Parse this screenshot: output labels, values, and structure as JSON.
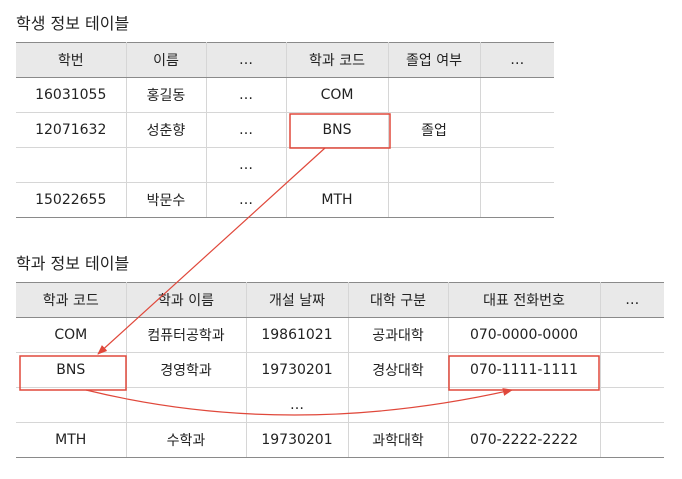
{
  "student_table": {
    "title": "학생 정보 테이블",
    "headers": [
      "학번",
      "이름",
      "…",
      "학과 코드",
      "졸업 여부",
      "…"
    ],
    "rows": [
      [
        "16031055",
        "홍길동",
        "…",
        "COM",
        "",
        ""
      ],
      [
        "12071632",
        "성춘향",
        "…",
        "BNS",
        "졸업",
        ""
      ],
      [
        "",
        "",
        "…",
        "",
        "",
        ""
      ],
      [
        "15022655",
        "박문수",
        "…",
        "MTH",
        "",
        ""
      ]
    ]
  },
  "dept_table": {
    "title": "학과 정보 테이블",
    "headers": [
      "학과 코드",
      "학과 이름",
      "개설 날짜",
      "대학 구분",
      "대표 전화번호",
      "…"
    ],
    "rows": [
      [
        "COM",
        "컴퓨터공학과",
        "19861021",
        "공과대학",
        "070-0000-0000",
        ""
      ],
      [
        "BNS",
        "경영학과",
        "19730201",
        "경상대학",
        "070-1111-1111",
        ""
      ],
      [
        "",
        "",
        "…",
        "",
        "",
        ""
      ],
      [
        "MTH",
        "수학과",
        "19730201",
        "과학대학",
        "070-2222-2222",
        ""
      ]
    ]
  },
  "colors": {
    "highlight": "#e0483b",
    "header_bg": "#e9e9e9",
    "grid": "#d6d6d6"
  }
}
